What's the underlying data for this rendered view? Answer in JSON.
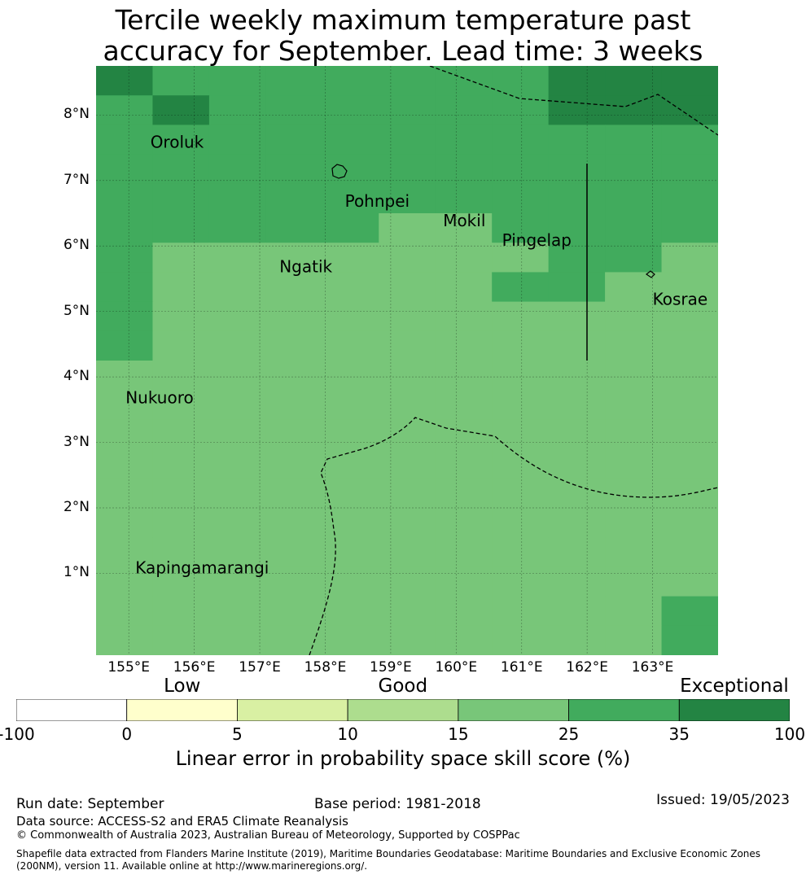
{
  "title": {
    "line1": "Tercile weekly maximum temperature past",
    "line2": "accuracy for September. Lead time: 3 weeks"
  },
  "map": {
    "lon_range": [
      154.5,
      164.0
    ],
    "lat_range": [
      -0.25,
      8.75
    ],
    "lat_ticks": [
      {
        "value": 1,
        "label": "1°N"
      },
      {
        "value": 2,
        "label": "2°N"
      },
      {
        "value": 3,
        "label": "3°N"
      },
      {
        "value": 4,
        "label": "4°N"
      },
      {
        "value": 5,
        "label": "5°N"
      },
      {
        "value": 6,
        "label": "6°N"
      },
      {
        "value": 7,
        "label": "7°N"
      },
      {
        "value": 8,
        "label": "8°N"
      }
    ],
    "lon_ticks": [
      {
        "value": 155,
        "label": "155°E"
      },
      {
        "value": 156,
        "label": "156°E"
      },
      {
        "value": 157,
        "label": "157°E"
      },
      {
        "value": 158,
        "label": "158°E"
      },
      {
        "value": 159,
        "label": "159°E"
      },
      {
        "value": 160,
        "label": "160°E"
      },
      {
        "value": 161,
        "label": "161°E"
      },
      {
        "value": 162,
        "label": "162°E"
      },
      {
        "value": 163,
        "label": "163°E"
      }
    ],
    "grid_lines": true,
    "cell_size_deg": 0.833,
    "skill_grid": [
      [
        35,
        25,
        25,
        25,
        25,
        25,
        25,
        25,
        35,
        35,
        35
      ],
      [
        25,
        35,
        25,
        25,
        25,
        25,
        25,
        25,
        35,
        35,
        35
      ],
      [
        25,
        25,
        25,
        25,
        25,
        25,
        25,
        25,
        25,
        25,
        25
      ],
      [
        25,
        25,
        25,
        25,
        25,
        25,
        25,
        25,
        25,
        25,
        25
      ],
      [
        25,
        25,
        25,
        25,
        25,
        25,
        25,
        25,
        25,
        25,
        25
      ],
      [
        25,
        25,
        25,
        25,
        25,
        20,
        20,
        25,
        25,
        25,
        25
      ],
      [
        25,
        20,
        20,
        20,
        20,
        20,
        20,
        20,
        25,
        25,
        20
      ],
      [
        25,
        20,
        20,
        20,
        20,
        20,
        20,
        25,
        25,
        20,
        20
      ],
      [
        25,
        20,
        20,
        20,
        20,
        20,
        20,
        20,
        20,
        20,
        20
      ],
      [
        25,
        20,
        20,
        20,
        20,
        15,
        20,
        20,
        20,
        20,
        20
      ],
      [
        20,
        20,
        20,
        20,
        15,
        20,
        15,
        20,
        20,
        20,
        20
      ],
      [
        20,
        20,
        20,
        20,
        20,
        20,
        15,
        20,
        20,
        20,
        20
      ],
      [
        20,
        15,
        20,
        20,
        15,
        15,
        15,
        20,
        15,
        15,
        20
      ],
      [
        20,
        15,
        20,
        20,
        20,
        20,
        20,
        20,
        15,
        15,
        20
      ],
      [
        20,
        15,
        15,
        15,
        20,
        20,
        20,
        20,
        15,
        15,
        20
      ],
      [
        20,
        15,
        15,
        15,
        20,
        20,
        20,
        20,
        20,
        15,
        20
      ],
      [
        20,
        15,
        15,
        15,
        20,
        20,
        20,
        20,
        20,
        20,
        20
      ],
      [
        20,
        15,
        15,
        15,
        20,
        20,
        20,
        20,
        20,
        20,
        20
      ],
      [
        20,
        20,
        20,
        15,
        20,
        20,
        20,
        20,
        20,
        20,
        25
      ],
      [
        20,
        20,
        20,
        20,
        20,
        20,
        20,
        20,
        20,
        20,
        25
      ]
    ],
    "places": [
      {
        "name": "Oroluk",
        "lon": 155.33,
        "lat": 7.5
      },
      {
        "name": "Pohnpei",
        "lon": 158.3,
        "lat": 6.6
      },
      {
        "name": "Mokil",
        "lon": 159.8,
        "lat": 6.3
      },
      {
        "name": "Pingelap",
        "lon": 160.7,
        "lat": 6.0
      },
      {
        "name": "Ngatik",
        "lon": 157.3,
        "lat": 5.6
      },
      {
        "name": "Kosrae",
        "lon": 163.0,
        "lat": 5.1
      },
      {
        "name": "Nukuoro",
        "lon": 154.95,
        "lat": 3.6
      },
      {
        "name": "Kapingamarangi",
        "lon": 155.1,
        "lat": 1.0
      }
    ]
  },
  "colorbar": {
    "categories": [
      {
        "label": "Low",
        "value": 2.5
      },
      {
        "label": "Good",
        "value": 12.5
      },
      {
        "label": "Exceptional",
        "value": 67.5
      }
    ],
    "bins": [
      {
        "from": -100,
        "to": 0,
        "color": "#ffffff"
      },
      {
        "from": 0,
        "to": 5,
        "color": "#ffffcc"
      },
      {
        "from": 5,
        "to": 10,
        "color": "#d9f0a3"
      },
      {
        "from": 10,
        "to": 15,
        "color": "#addd8e"
      },
      {
        "from": 15,
        "to": 25,
        "color": "#78c679"
      },
      {
        "from": 25,
        "to": 35,
        "color": "#41ab5d"
      },
      {
        "from": 35,
        "to": 100,
        "color": "#238443"
      }
    ],
    "ticks": [
      "-100",
      "0",
      "5",
      "10",
      "15",
      "25",
      "35",
      "100"
    ],
    "title": "Linear error in probability space skill score (%)"
  },
  "footer": {
    "run_date": "Run date: September",
    "base_period": "Base period: 1981-2018",
    "issued": "Issued: 19/05/2023",
    "data_source": "Data source: ACCESS-S2 and ERA5 Climate Reanalysis",
    "copyright": "© Commonwealth of Australia 2023, Australian Bureau of Meteorology, Supported by COSPPac",
    "shapefile_note": "Shapefile data extracted from Flanders Marine Institute (2019), Maritime Boundaries Geodatabase: Maritime Boundaries and Exclusive Economic Zones (200NM), version 11. Available online at http://www.marineregions.org/."
  }
}
